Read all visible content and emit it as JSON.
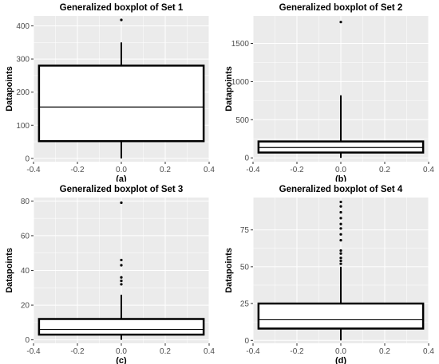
{
  "chart_data": [
    {
      "type": "box",
      "title": "Generalized boxplot of Set 1",
      "ylabel": "Datapoints",
      "sublabel": "(a)",
      "x_range": [
        -0.4,
        0.4
      ],
      "x_ticks": [
        -0.4,
        -0.2,
        0.0,
        0.2,
        0.4
      ],
      "x_tick_labels": [
        "-0.4",
        "-0.2",
        "0.0",
        "0.2",
        "0.4"
      ],
      "y_range": [
        -10,
        430
      ],
      "y_ticks": [
        0,
        100,
        200,
        300,
        400
      ],
      "y_tick_labels": [
        "0",
        "100",
        "200",
        "300",
        "400"
      ],
      "grid": true,
      "box": {
        "x_min": -0.375,
        "x_max": 0.375,
        "whisker_low": 0,
        "q1": 52,
        "median": 155,
        "q3": 280,
        "whisker_high": 350
      },
      "outliers": [
        418
      ]
    },
    {
      "type": "box",
      "title": "Generalized boxplot of Set 2",
      "ylabel": "Datapoints",
      "sublabel": "(b)",
      "x_range": [
        -0.4,
        0.4
      ],
      "x_ticks": [
        -0.4,
        -0.2,
        0.0,
        0.2,
        0.4
      ],
      "x_tick_labels": [
        "-0.4",
        "-0.2",
        "0.0",
        "0.2",
        "0.4"
      ],
      "y_range": [
        -50,
        1860
      ],
      "y_ticks": [
        0,
        500,
        1000,
        1500
      ],
      "y_tick_labels": [
        "0",
        "500",
        "1000",
        "1500"
      ],
      "grid": true,
      "box": {
        "x_min": -0.375,
        "x_max": 0.375,
        "whisker_low": 0,
        "q1": 70,
        "median": 135,
        "q3": 215,
        "whisker_high": 820
      },
      "outliers": [
        1780
      ]
    },
    {
      "type": "box",
      "title": "Generalized boxplot of Set 3",
      "ylabel": "Datapoints",
      "sublabel": "(c)",
      "x_range": [
        -0.4,
        0.4
      ],
      "x_ticks": [
        -0.4,
        -0.2,
        0.0,
        0.2,
        0.4
      ],
      "x_tick_labels": [
        "-0.4",
        "-0.2",
        "0.0",
        "0.2",
        "0.4"
      ],
      "y_range": [
        -2,
        82
      ],
      "y_ticks": [
        0,
        20,
        40,
        60,
        80
      ],
      "y_tick_labels": [
        "0",
        "20",
        "40",
        "60",
        "80"
      ],
      "grid": true,
      "box": {
        "x_min": -0.375,
        "x_max": 0.375,
        "whisker_low": 0,
        "q1": 3,
        "median": 6,
        "q3": 12,
        "whisker_high": 26
      },
      "outliers": [
        32,
        34,
        36,
        43,
        46,
        79
      ]
    },
    {
      "type": "box",
      "title": "Generalized boxplot of Set 4",
      "ylabel": "Datapoints",
      "sublabel": "(d)",
      "x_range": [
        -0.4,
        0.4
      ],
      "x_ticks": [
        -0.4,
        -0.2,
        0.0,
        0.2,
        0.4
      ],
      "x_tick_labels": [
        "-0.4",
        "-0.2",
        "0.0",
        "0.2",
        "0.4"
      ],
      "y_range": [
        -2,
        97
      ],
      "y_ticks": [
        0,
        25,
        50,
        75
      ],
      "y_tick_labels": [
        "0",
        "25",
        "50",
        "75"
      ],
      "grid": true,
      "box": {
        "x_min": -0.375,
        "x_max": 0.375,
        "whisker_low": 0,
        "q1": 8,
        "median": 14,
        "q3": 25,
        "whisker_high": 50
      },
      "outliers": [
        52,
        54,
        56,
        59,
        61,
        68,
        72,
        76,
        79,
        83,
        87,
        91,
        94
      ]
    }
  ]
}
